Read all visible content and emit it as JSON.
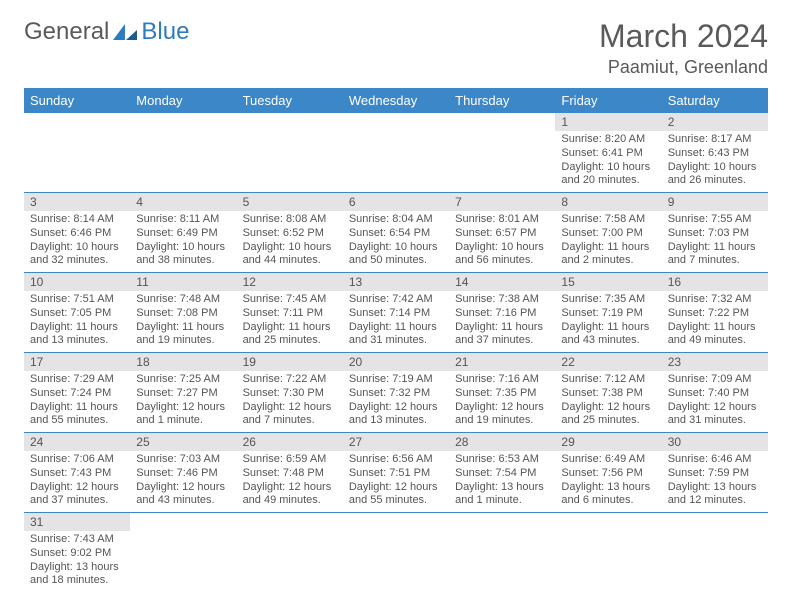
{
  "logo": {
    "text1": "General",
    "text2": "Blue"
  },
  "title": "March 2024",
  "location": "Paamiut, Greenland",
  "colors": {
    "header_bg": "#3b87c8",
    "header_text": "#ffffff",
    "daynum_bg": "#e4e4e4",
    "border": "#3b87c8",
    "text": "#555555",
    "logo_blue": "#2f7bbf"
  },
  "weekdays": [
    "Sunday",
    "Monday",
    "Tuesday",
    "Wednesday",
    "Thursday",
    "Friday",
    "Saturday"
  ],
  "weeks": [
    [
      null,
      null,
      null,
      null,
      null,
      {
        "n": "1",
        "sr": "Sunrise: 8:20 AM",
        "ss": "Sunset: 6:41 PM",
        "dl": "Daylight: 10 hours and 20 minutes."
      },
      {
        "n": "2",
        "sr": "Sunrise: 8:17 AM",
        "ss": "Sunset: 6:43 PM",
        "dl": "Daylight: 10 hours and 26 minutes."
      }
    ],
    [
      {
        "n": "3",
        "sr": "Sunrise: 8:14 AM",
        "ss": "Sunset: 6:46 PM",
        "dl": "Daylight: 10 hours and 32 minutes."
      },
      {
        "n": "4",
        "sr": "Sunrise: 8:11 AM",
        "ss": "Sunset: 6:49 PM",
        "dl": "Daylight: 10 hours and 38 minutes."
      },
      {
        "n": "5",
        "sr": "Sunrise: 8:08 AM",
        "ss": "Sunset: 6:52 PM",
        "dl": "Daylight: 10 hours and 44 minutes."
      },
      {
        "n": "6",
        "sr": "Sunrise: 8:04 AM",
        "ss": "Sunset: 6:54 PM",
        "dl": "Daylight: 10 hours and 50 minutes."
      },
      {
        "n": "7",
        "sr": "Sunrise: 8:01 AM",
        "ss": "Sunset: 6:57 PM",
        "dl": "Daylight: 10 hours and 56 minutes."
      },
      {
        "n": "8",
        "sr": "Sunrise: 7:58 AM",
        "ss": "Sunset: 7:00 PM",
        "dl": "Daylight: 11 hours and 2 minutes."
      },
      {
        "n": "9",
        "sr": "Sunrise: 7:55 AM",
        "ss": "Sunset: 7:03 PM",
        "dl": "Daylight: 11 hours and 7 minutes."
      }
    ],
    [
      {
        "n": "10",
        "sr": "Sunrise: 7:51 AM",
        "ss": "Sunset: 7:05 PM",
        "dl": "Daylight: 11 hours and 13 minutes."
      },
      {
        "n": "11",
        "sr": "Sunrise: 7:48 AM",
        "ss": "Sunset: 7:08 PM",
        "dl": "Daylight: 11 hours and 19 minutes."
      },
      {
        "n": "12",
        "sr": "Sunrise: 7:45 AM",
        "ss": "Sunset: 7:11 PM",
        "dl": "Daylight: 11 hours and 25 minutes."
      },
      {
        "n": "13",
        "sr": "Sunrise: 7:42 AM",
        "ss": "Sunset: 7:14 PM",
        "dl": "Daylight: 11 hours and 31 minutes."
      },
      {
        "n": "14",
        "sr": "Sunrise: 7:38 AM",
        "ss": "Sunset: 7:16 PM",
        "dl": "Daylight: 11 hours and 37 minutes."
      },
      {
        "n": "15",
        "sr": "Sunrise: 7:35 AM",
        "ss": "Sunset: 7:19 PM",
        "dl": "Daylight: 11 hours and 43 minutes."
      },
      {
        "n": "16",
        "sr": "Sunrise: 7:32 AM",
        "ss": "Sunset: 7:22 PM",
        "dl": "Daylight: 11 hours and 49 minutes."
      }
    ],
    [
      {
        "n": "17",
        "sr": "Sunrise: 7:29 AM",
        "ss": "Sunset: 7:24 PM",
        "dl": "Daylight: 11 hours and 55 minutes."
      },
      {
        "n": "18",
        "sr": "Sunrise: 7:25 AM",
        "ss": "Sunset: 7:27 PM",
        "dl": "Daylight: 12 hours and 1 minute."
      },
      {
        "n": "19",
        "sr": "Sunrise: 7:22 AM",
        "ss": "Sunset: 7:30 PM",
        "dl": "Daylight: 12 hours and 7 minutes."
      },
      {
        "n": "20",
        "sr": "Sunrise: 7:19 AM",
        "ss": "Sunset: 7:32 PM",
        "dl": "Daylight: 12 hours and 13 minutes."
      },
      {
        "n": "21",
        "sr": "Sunrise: 7:16 AM",
        "ss": "Sunset: 7:35 PM",
        "dl": "Daylight: 12 hours and 19 minutes."
      },
      {
        "n": "22",
        "sr": "Sunrise: 7:12 AM",
        "ss": "Sunset: 7:38 PM",
        "dl": "Daylight: 12 hours and 25 minutes."
      },
      {
        "n": "23",
        "sr": "Sunrise: 7:09 AM",
        "ss": "Sunset: 7:40 PM",
        "dl": "Daylight: 12 hours and 31 minutes."
      }
    ],
    [
      {
        "n": "24",
        "sr": "Sunrise: 7:06 AM",
        "ss": "Sunset: 7:43 PM",
        "dl": "Daylight: 12 hours and 37 minutes."
      },
      {
        "n": "25",
        "sr": "Sunrise: 7:03 AM",
        "ss": "Sunset: 7:46 PM",
        "dl": "Daylight: 12 hours and 43 minutes."
      },
      {
        "n": "26",
        "sr": "Sunrise: 6:59 AM",
        "ss": "Sunset: 7:48 PM",
        "dl": "Daylight: 12 hours and 49 minutes."
      },
      {
        "n": "27",
        "sr": "Sunrise: 6:56 AM",
        "ss": "Sunset: 7:51 PM",
        "dl": "Daylight: 12 hours and 55 minutes."
      },
      {
        "n": "28",
        "sr": "Sunrise: 6:53 AM",
        "ss": "Sunset: 7:54 PM",
        "dl": "Daylight: 13 hours and 1 minute."
      },
      {
        "n": "29",
        "sr": "Sunrise: 6:49 AM",
        "ss": "Sunset: 7:56 PM",
        "dl": "Daylight: 13 hours and 6 minutes."
      },
      {
        "n": "30",
        "sr": "Sunrise: 6:46 AM",
        "ss": "Sunset: 7:59 PM",
        "dl": "Daylight: 13 hours and 12 minutes."
      }
    ],
    [
      {
        "n": "31",
        "sr": "Sunrise: 7:43 AM",
        "ss": "Sunset: 9:02 PM",
        "dl": "Daylight: 13 hours and 18 minutes."
      },
      null,
      null,
      null,
      null,
      null,
      null
    ]
  ]
}
